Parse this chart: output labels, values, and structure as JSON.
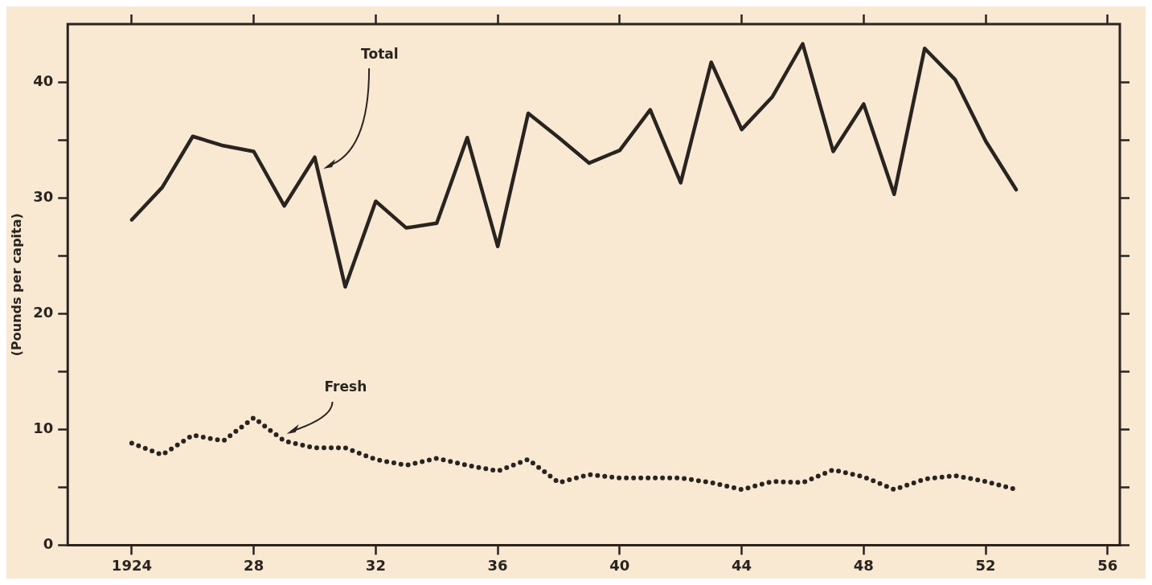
{
  "chart_data": {
    "type": "line",
    "ylabel": "(Pounds per capita)",
    "x": [
      1924,
      1925,
      1926,
      1927,
      1928,
      1929,
      1930,
      1931,
      1932,
      1933,
      1934,
      1935,
      1936,
      1937,
      1938,
      1939,
      1940,
      1941,
      1942,
      1943,
      1944,
      1945,
      1946,
      1947,
      1948,
      1949,
      1950,
      1951,
      1952,
      1953
    ],
    "series": [
      {
        "color": "#2a2420",
        "line_style": "solid",
        "values": [
          28.1,
          30.9,
          35.3,
          34.5,
          34.0,
          29.3,
          33.5,
          22.3,
          29.7,
          27.4,
          27.8,
          35.2,
          25.8,
          37.3,
          35.2,
          33.0,
          34.1,
          37.6,
          31.3,
          41.7,
          35.9,
          38.7,
          43.3,
          34.0,
          38.1,
          30.3,
          42.9,
          40.2,
          34.9,
          30.7
        ]
      },
      {
        "color": "#2a2420",
        "line_style": "dotted",
        "values": [
          8.8,
          7.8,
          9.5,
          9.0,
          11.0,
          9.0,
          8.4,
          8.4,
          7.4,
          6.9,
          7.5,
          6.9,
          6.4,
          7.4,
          5.4,
          6.1,
          5.8,
          5.8,
          5.8,
          5.4,
          4.8,
          5.5,
          5.4,
          6.5,
          5.9,
          4.8,
          5.7,
          6.0,
          5.5,
          4.8
        ]
      }
    ],
    "annotations": [
      {
        "text": "Total",
        "x": 1930.2,
        "y": 32.5
      },
      {
        "text": "Fresh",
        "x": 1929,
        "y": 9.6
      }
    ],
    "xlim": [
      1921.9,
      1956.4
    ],
    "xticks": [
      {
        "value": 1924,
        "label": "1924"
      },
      {
        "value": 1928,
        "label": "28"
      },
      {
        "value": 1932,
        "label": "32"
      },
      {
        "value": 1936,
        "label": "36"
      },
      {
        "value": 1940,
        "label": "40"
      },
      {
        "value": 1944,
        "label": "44"
      },
      {
        "value": 1948,
        "label": "48"
      },
      {
        "value": 1952,
        "label": "52"
      },
      {
        "value": 1956,
        "label": "56"
      }
    ],
    "ylim": [
      0,
      45
    ],
    "yticks": [
      0,
      {
        "value": 5,
        "label": null
      },
      10,
      {
        "value": 15,
        "label": null
      },
      20,
      {
        "value": 25,
        "label": null
      },
      30,
      {
        "value": 35,
        "label": null
      },
      40
    ],
    "grid": false,
    "legend": false,
    "marker": "none"
  }
}
